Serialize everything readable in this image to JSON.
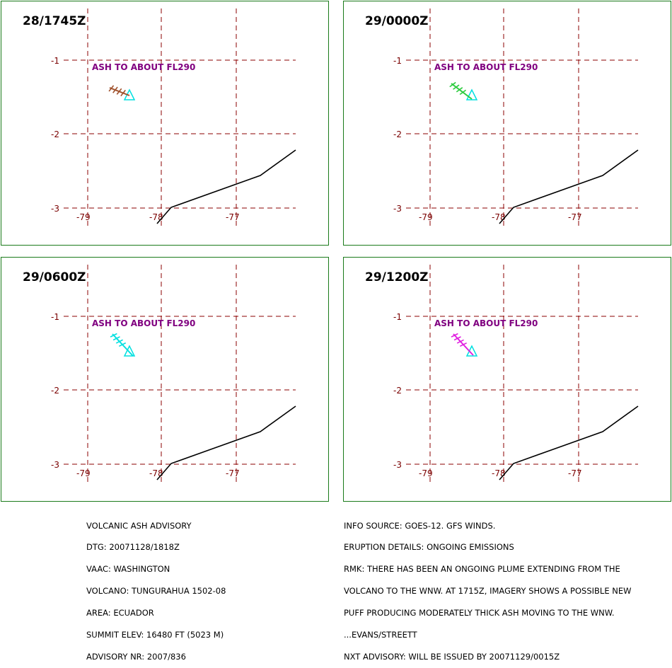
{
  "panels": [
    {
      "title": "28/1745Z",
      "ash_label": "ASH TO ABOUT FL290",
      "symbol_color": "#a0522d"
    },
    {
      "title": "29/0000Z",
      "ash_label": "ASH TO ABOUT FL290",
      "symbol_color": "#2ecc40"
    },
    {
      "title": "29/0600Z",
      "ash_label": "ASH TO ABOUT FL290",
      "symbol_color": "#00e0e0"
    },
    {
      "title": "29/1200Z",
      "ash_label": "ASH TO ABOUT FL290",
      "symbol_color": "#e020e0"
    }
  ],
  "map": {
    "lat_labels": [
      "-1",
      "-2",
      "-3"
    ],
    "lon_labels": [
      "-79",
      "-78",
      "-77"
    ],
    "grid_color": "#8b0000",
    "coast_color": "#000000",
    "volcano_color": "#00e0e0"
  },
  "advisory_left": [
    "VOLCANIC ASH ADVISORY",
    "DTG: 20071128/1818Z",
    "VAAC: WASHINGTON",
    "VOLCANO: TUNGURAHUA 1502-08",
    "AREA: ECUADOR",
    "SUMMIT ELEV: 16480 FT (5023 M)",
    "ADVISORY NR: 2007/836"
  ],
  "advisory_right": [
    "INFO SOURCE: GOES-12. GFS WINDS.",
    "ERUPTION DETAILS: ONGOING EMISSIONS",
    "RMK: THERE HAS BEEN AN ONGOING PLUME EXTENDING FROM THE",
    "VOLCANO TO THE WNW. AT 1715Z, IMAGERY SHOWS A POSSIBLE NEW",
    "PUFF PRODUCING MODERATELY THICK ASH MOVING TO THE WNW.",
    "...EVANS/STREETT",
    "NXT ADVISORY: WILL BE ISSUED BY 20071129/0015Z"
  ]
}
